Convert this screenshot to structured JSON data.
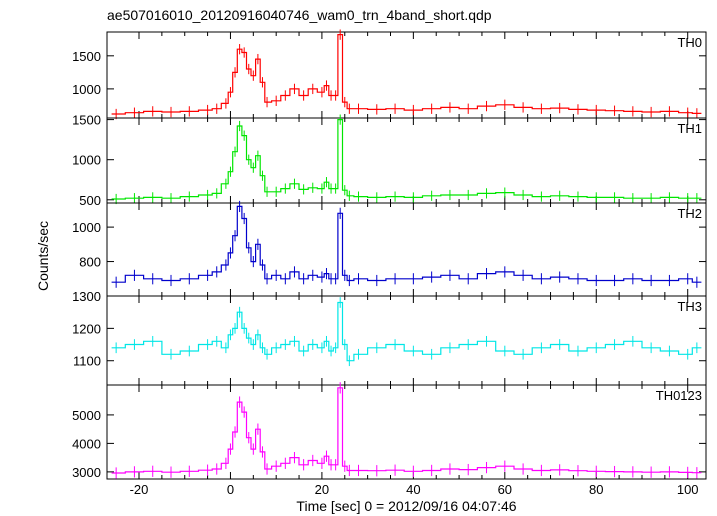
{
  "chart_data": {
    "type": "line",
    "title": "ae507016010_20120916040746_wam0_trn_4band_short.qdp",
    "xlabel": "Time [sec] 0 = 2012/09/16 04:07:46",
    "ylabel": "Counts/sec",
    "xlim": [
      -27,
      104
    ],
    "x_ticks": [
      -20,
      0,
      20,
      40,
      60,
      80,
      100
    ],
    "grid": false,
    "panels": [
      {
        "name": "TH0",
        "color": "#ff0000",
        "ylim": [
          560,
          1860
        ],
        "y_ticks": [
          1000,
          1500
        ],
        "x": [
          -25,
          -21,
          -17,
          -13,
          -9,
          -5,
          -3,
          -1,
          0,
          1,
          2,
          3,
          4,
          5,
          6,
          7,
          8,
          10,
          12,
          14,
          16,
          18,
          20,
          21,
          22,
          23,
          24,
          25,
          26,
          28,
          32,
          36,
          40,
          44,
          48,
          52,
          56,
          60,
          64,
          68,
          72,
          76,
          80,
          84,
          88,
          92,
          96,
          100,
          102
        ],
        "values": [
          620,
          640,
          660,
          650,
          660,
          680,
          700,
          780,
          950,
          1250,
          1600,
          1550,
          1300,
          1200,
          1450,
          1100,
          800,
          820,
          900,
          1000,
          900,
          1000,
          950,
          1050,
          900,
          900,
          1820,
          800,
          700,
          700,
          690,
          700,
          680,
          700,
          720,
          700,
          740,
          760,
          720,
          700,
          710,
          690,
          680,
          670,
          660,
          650,
          660,
          640,
          630
        ]
      },
      {
        "name": "TH1",
        "color": "#00e600",
        "ylim": [
          460,
          1520
        ],
        "y_ticks": [
          500,
          1000,
          1500
        ],
        "x": [
          -25,
          -21,
          -17,
          -13,
          -9,
          -5,
          -3,
          -1,
          0,
          1,
          2,
          3,
          4,
          5,
          6,
          7,
          8,
          10,
          12,
          14,
          16,
          18,
          20,
          21,
          22,
          23,
          24,
          25,
          26,
          28,
          32,
          36,
          40,
          44,
          48,
          52,
          56,
          60,
          64,
          68,
          72,
          76,
          80,
          84,
          88,
          92,
          96,
          100,
          102
        ],
        "values": [
          510,
          520,
          530,
          520,
          540,
          560,
          580,
          700,
          850,
          1100,
          1420,
          1300,
          1000,
          900,
          1050,
          800,
          600,
          600,
          640,
          700,
          630,
          650,
          640,
          720,
          640,
          640,
          1500,
          620,
          550,
          540,
          530,
          540,
          530,
          550,
          560,
          560,
          580,
          590,
          560,
          540,
          550,
          540,
          530,
          530,
          520,
          520,
          530,
          520,
          520
        ]
      },
      {
        "name": "TH2",
        "color": "#0000cc",
        "ylim": [
          600,
          1140
        ],
        "y_ticks": [
          800,
          1000
        ],
        "x": [
          -25,
          -21,
          -17,
          -13,
          -9,
          -5,
          -3,
          -1,
          0,
          1,
          2,
          3,
          4,
          5,
          6,
          7,
          8,
          10,
          12,
          14,
          16,
          18,
          20,
          21,
          22,
          23,
          24,
          25,
          26,
          28,
          32,
          36,
          40,
          44,
          48,
          52,
          56,
          60,
          64,
          68,
          72,
          76,
          80,
          84,
          88,
          92,
          96,
          100,
          102
        ],
        "values": [
          680,
          720,
          700,
          690,
          700,
          720,
          740,
          780,
          850,
          950,
          1120,
          1050,
          880,
          800,
          900,
          780,
          700,
          720,
          700,
          740,
          700,
          720,
          710,
          730,
          700,
          700,
          1080,
          720,
          690,
          700,
          690,
          700,
          700,
          710,
          720,
          700,
          730,
          740,
          720,
          700,
          710,
          700,
          690,
          690,
          700,
          690,
          690,
          700,
          680
        ]
      },
      {
        "name": "TH3",
        "color": "#00e6e6",
        "ylim": [
          1025,
          1300
        ],
        "y_ticks": [
          1100,
          1200,
          1300
        ],
        "x": [
          -25,
          -21,
          -17,
          -13,
          -9,
          -5,
          -3,
          -1,
          0,
          1,
          2,
          3,
          4,
          5,
          6,
          7,
          8,
          10,
          12,
          14,
          16,
          18,
          20,
          21,
          22,
          23,
          24,
          25,
          26,
          28,
          32,
          36,
          40,
          44,
          48,
          52,
          56,
          60,
          64,
          68,
          72,
          76,
          80,
          84,
          88,
          92,
          96,
          100,
          102
        ],
        "values": [
          1140,
          1150,
          1160,
          1120,
          1130,
          1150,
          1160,
          1140,
          1180,
          1200,
          1250,
          1200,
          1170,
          1150,
          1180,
          1140,
          1120,
          1140,
          1150,
          1160,
          1130,
          1150,
          1140,
          1160,
          1130,
          1140,
          1280,
          1150,
          1100,
          1120,
          1140,
          1150,
          1130,
          1120,
          1140,
          1150,
          1160,
          1130,
          1120,
          1140,
          1150,
          1130,
          1140,
          1150,
          1160,
          1140,
          1130,
          1120,
          1140
        ]
      },
      {
        "name": "TH0123",
        "color": "#ff00ff",
        "ylim": [
          2750,
          6050
        ],
        "y_ticks": [
          3000,
          4000,
          5000
        ],
        "x": [
          -25,
          -21,
          -17,
          -13,
          -9,
          -5,
          -3,
          -1,
          0,
          1,
          2,
          3,
          4,
          5,
          6,
          7,
          8,
          10,
          12,
          14,
          16,
          18,
          20,
          21,
          22,
          23,
          24,
          25,
          26,
          28,
          32,
          36,
          40,
          44,
          48,
          52,
          56,
          60,
          64,
          68,
          72,
          76,
          80,
          84,
          88,
          92,
          96,
          100,
          102
        ],
        "values": [
          2960,
          3000,
          3020,
          2990,
          3020,
          3060,
          3100,
          3300,
          3800,
          4400,
          5450,
          5100,
          4200,
          3800,
          4500,
          3700,
          3100,
          3200,
          3300,
          3500,
          3250,
          3400,
          3300,
          3550,
          3250,
          3250,
          5950,
          3200,
          3050,
          3050,
          3040,
          3060,
          3020,
          3050,
          3100,
          3080,
          3150,
          3200,
          3100,
          3050,
          3070,
          3040,
          3020,
          3010,
          3000,
          2990,
          3000,
          2980,
          2970
        ]
      }
    ]
  }
}
